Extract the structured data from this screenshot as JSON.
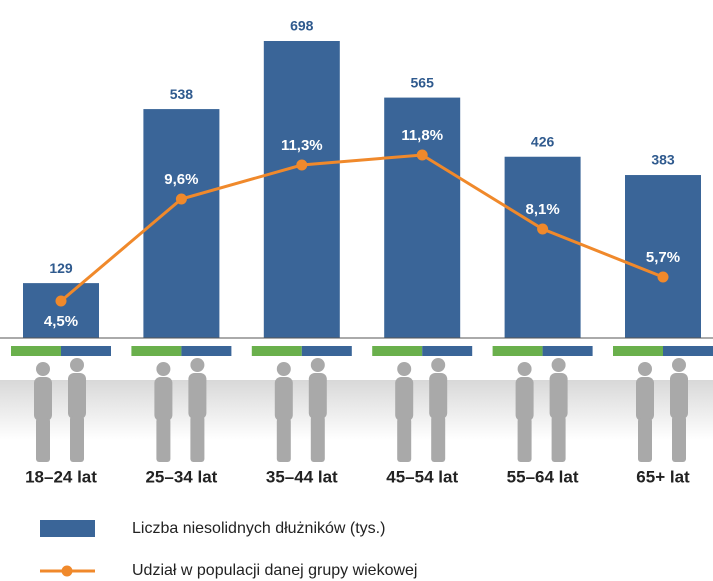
{
  "chart_data": {
    "type": "bar",
    "categories": [
      "18–24 lat",
      "25–34 lat",
      "35–44 lat",
      "45–54 lat",
      "55–64 lat",
      "65+ lat"
    ],
    "series": [
      {
        "name": "Liczba niesolidnych dłużników (tys.)",
        "type": "bar",
        "color": "#3a6598",
        "values": [
          129,
          538,
          698,
          565,
          426,
          383
        ]
      },
      {
        "name": "Udział w populacji danej grupy wiekowej",
        "type": "line",
        "axis": "y2",
        "color": "#f0892b",
        "values": [
          4.5,
          9.6,
          11.3,
          11.8,
          8.1,
          5.7
        ],
        "value_labels": [
          "4,5%",
          "9,6%",
          "11,3%",
          "11,8%",
          "8,1%",
          "5,7%"
        ]
      }
    ]
  }
}
